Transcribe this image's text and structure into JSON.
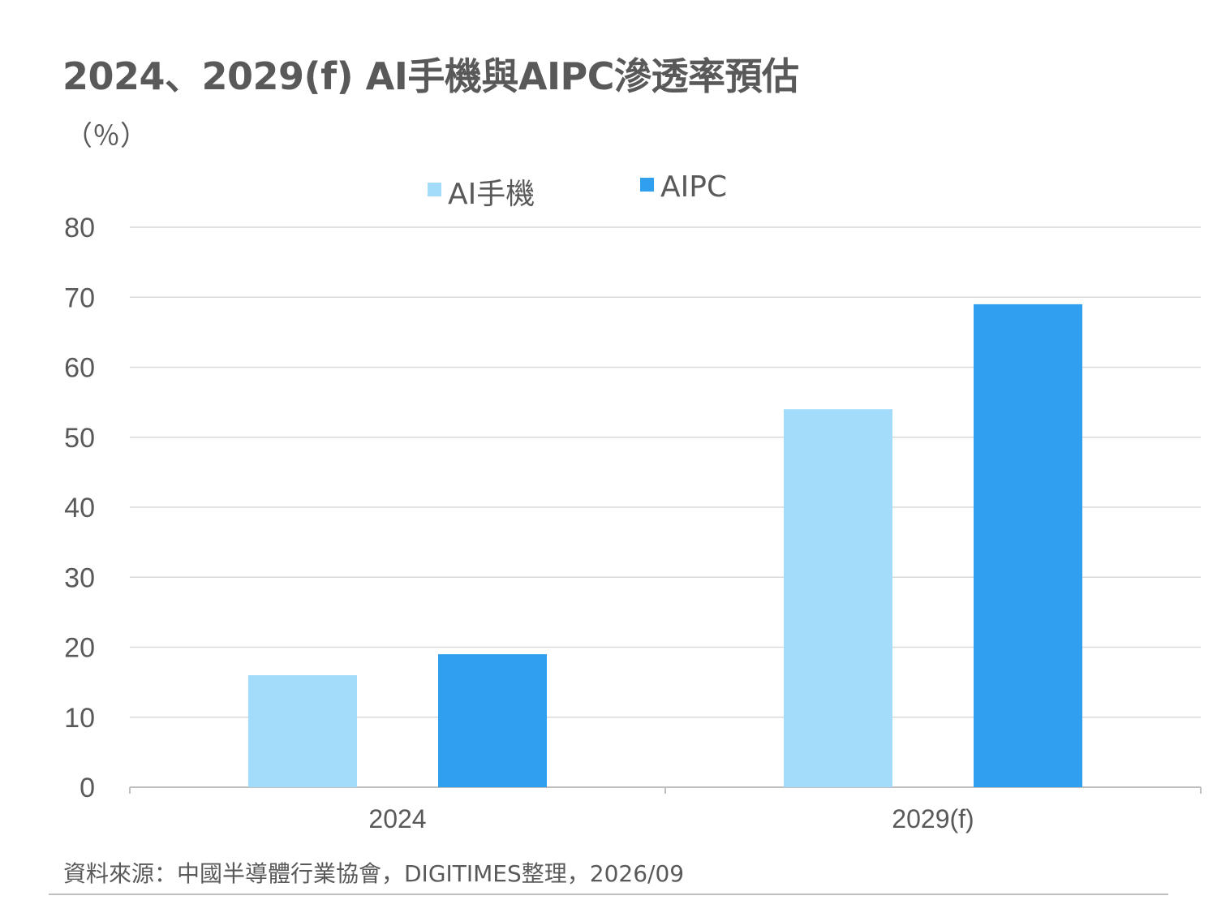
{
  "header": {
    "title": "2024、2029(f) AI手機與AIPC滲透率預估",
    "unit": "（％）"
  },
  "source": "資料來源：中國半導體行業協會，DIGITIMES整理，2026/09",
  "chart_data": {
    "type": "bar",
    "categories": [
      "2024",
      "2029(f)"
    ],
    "series": [
      {
        "name": "AI手機",
        "color": "#a3dbfa",
        "values": [
          16,
          54
        ]
      },
      {
        "name": "AIPC",
        "color": "#309fee",
        "values": [
          19,
          69
        ]
      }
    ],
    "ylim": [
      0,
      80
    ],
    "yticks": [
      "0",
      "10",
      "20",
      "30",
      "40",
      "50",
      "60",
      "70",
      "80"
    ],
    "grid": true,
    "legend": "top-center",
    "gridColor": "#d9d9d9",
    "axisColor": "#bfbfbf"
  }
}
